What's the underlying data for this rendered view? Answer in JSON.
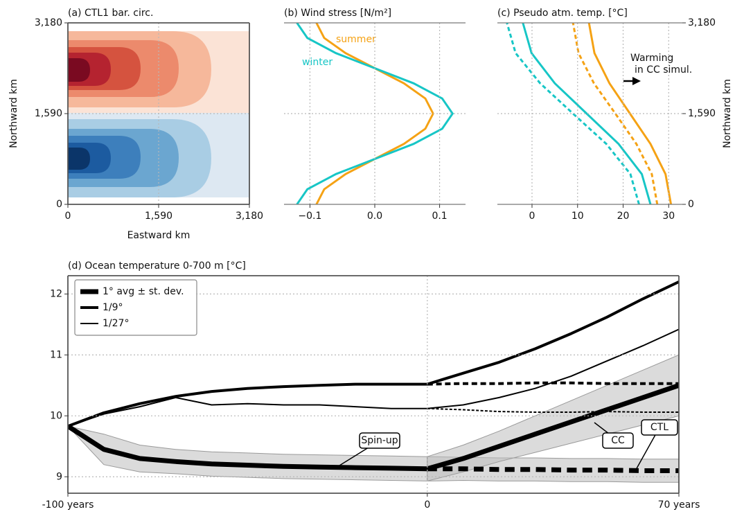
{
  "chart_data": [
    {
      "type": "contour",
      "title": "(a) CTL1 bar. circ.",
      "xlabel": "Eastward km",
      "ylabel": "Northward km",
      "xlim": [
        0,
        3180
      ],
      "ylim": [
        0,
        3180
      ],
      "xticks": [
        0,
        {
          "value": 1590,
          "label": "1,590"
        },
        {
          "value": 3180,
          "label": "3,180"
        }
      ],
      "yticks": [
        0,
        {
          "value": 1590,
          "label": "1,590"
        },
        {
          "value": 3180,
          "label": "3,180"
        }
      ],
      "grid": true,
      "yaxis_side": "left",
      "spines": [
        "top",
        "bottom",
        "left",
        "right"
      ],
      "gyres": [
        {
          "levels": [
            {
              "x_max": 3180,
              "y_min": 1602,
              "y_max": 3034,
              "color": "#fbe3d6"
            },
            {
              "x_max": 2512,
              "y_min": 1699,
              "y_max": 3034,
              "color": "#f6b89b"
            },
            {
              "x_max": 1942,
              "y_min": 1881,
              "y_max": 2877,
              "color": "#ec8a6c"
            },
            {
              "x_max": 1274,
              "y_min": 2003,
              "y_max": 2755,
              "color": "#d5533f"
            },
            {
              "x_max": 752,
              "y_min": 2076,
              "y_max": 2658,
              "color": "#b52330"
            },
            {
              "x_max": 388,
              "y_min": 2148,
              "y_max": 2561,
              "color": "#7a0a21"
            }
          ]
        },
        {
          "levels": [
            {
              "x_max": 3180,
              "y_min": 121,
              "y_max": 1602,
              "color": "#dde8f2"
            },
            {
              "x_max": 2512,
              "y_min": 121,
              "y_max": 1493,
              "color": "#a9cde4"
            },
            {
              "x_max": 1942,
              "y_min": 303,
              "y_max": 1323,
              "color": "#6ba6d0"
            },
            {
              "x_max": 1274,
              "y_min": 449,
              "y_max": 1202,
              "color": "#3d7fbc"
            },
            {
              "x_max": 752,
              "y_min": 546,
              "y_max": 1080,
              "color": "#1c5ba0"
            },
            {
              "x_max": 388,
              "y_min": 607,
              "y_max": 995,
              "color": "#0b3569"
            }
          ]
        }
      ]
    },
    {
      "type": "profile",
      "title": "(b) Wind stress [N/m²]",
      "xlim": [
        -0.14,
        0.14
      ],
      "ylim": [
        0,
        3180
      ],
      "xticks": [
        {
          "value": -0.1,
          "label": "−0.1"
        },
        {
          "value": 0,
          "label": "0.0"
        },
        0.1
      ],
      "ygrid_lines": [
        1590
      ],
      "grid": true,
      "spines": [
        "top",
        "bottom"
      ],
      "y": [
        0,
        265,
        530,
        795,
        1060,
        1325,
        1590,
        1855,
        2120,
        2385,
        2650,
        2915,
        3180
      ],
      "series": [
        {
          "name": "summer",
          "color": "#f5a214",
          "style": "solid",
          "values": [
            -0.09,
            -0.078,
            -0.045,
            0,
            0.045,
            0.078,
            0.09,
            0.078,
            0.045,
            0,
            -0.045,
            -0.078,
            -0.09
          ]
        },
        {
          "name": "winter",
          "color": "#17c6c6",
          "style": "solid",
          "values": [
            -0.12,
            -0.104,
            -0.06,
            0,
            0.06,
            0.104,
            0.12,
            0.104,
            0.06,
            0,
            -0.06,
            -0.104,
            -0.12
          ]
        }
      ]
    },
    {
      "type": "profile",
      "title": "(c) Pseudo atm. temp. [°C]",
      "ylabel": "Northward km",
      "xlim": [
        -7.6,
        33
      ],
      "ylim": [
        0,
        3180
      ],
      "xticks": [
        0,
        10,
        20,
        30
      ],
      "yticks": [
        0,
        {
          "value": 1590,
          "label": "1,590"
        },
        {
          "value": 3180,
          "label": "3,180"
        }
      ],
      "yaxis_side": "right",
      "grid": true,
      "spines": [
        "top",
        "bottom"
      ],
      "annotation": [
        "Warming",
        "in CC simul."
      ],
      "y": [
        0,
        530,
        1060,
        1590,
        2120,
        2650,
        3180
      ],
      "series": [
        {
          "color": "#17c6c6",
          "style": "solid",
          "values": [
            26,
            24.1,
            19,
            12,
            5,
            -0.1,
            -2
          ]
        },
        {
          "color": "#17c6c6",
          "style": "dashed",
          "values": [
            23.5,
            21.6,
            16.3,
            9,
            1.8,
            -3.6,
            -5.5
          ]
        },
        {
          "color": "#f5a214",
          "style": "solid",
          "values": [
            30.5,
            29.3,
            26,
            21.5,
            17,
            13.7,
            12.5
          ]
        },
        {
          "color": "#f5a214",
          "style": "dashed",
          "values": [
            27.5,
            26.3,
            22.9,
            18.3,
            13.6,
            10.2,
            9
          ]
        }
      ]
    },
    {
      "type": "line",
      "title": "(d) Ocean temperature 0-700 m [°C]",
      "xlim": [
        -100,
        70
      ],
      "ylim": [
        8.73,
        12.3
      ],
      "xticks": [
        {
          "value": -100,
          "label": "-100 years"
        },
        0,
        {
          "value": 70,
          "label": "70 years"
        }
      ],
      "yticks": [
        9,
        10,
        11,
        12
      ],
      "yaxis_side": "left",
      "grid": true,
      "spines": [
        "top",
        "bottom",
        "left",
        "right"
      ],
      "legend": "upper left",
      "x": [
        -100,
        -90,
        -80,
        -70,
        -60,
        -50,
        -40,
        -30,
        -20,
        -10,
        0
      ],
      "x_exp": [
        0,
        10,
        20,
        30,
        40,
        50,
        60,
        70
      ],
      "annotations": [
        "Spin-up",
        "CC",
        "CTL"
      ],
      "series": [
        {
          "name": "1° avg ± st. dev.",
          "color": "#000000",
          "width": 7,
          "values": [
            9.83,
            9.45,
            9.3,
            9.25,
            9.21,
            9.19,
            9.17,
            9.16,
            9.15,
            9.14,
            9.13
          ],
          "std": [
            0,
            0.25,
            0.22,
            0.2,
            0.2,
            0.2,
            0.2,
            0.2,
            0.2,
            0.2,
            0.2
          ],
          "ctl": [
            9.13,
            9.13,
            9.12,
            9.12,
            9.11,
            9.11,
            9.1,
            9.1
          ],
          "ctl_std": [
            0.2,
            0.19,
            0.19,
            0.19,
            0.19,
            0.19,
            0.19,
            0.19
          ],
          "cc": [
            9.13,
            9.3,
            9.5,
            9.7,
            9.9,
            10.1,
            10.3,
            10.5
          ],
          "cc_std": [
            0.2,
            0.22,
            0.25,
            0.3,
            0.35,
            0.4,
            0.45,
            0.5
          ]
        },
        {
          "name": "1/9°",
          "color": "#000000",
          "width": 4,
          "values": [
            9.83,
            10.05,
            10.2,
            10.32,
            10.4,
            10.45,
            10.48,
            10.5,
            10.52,
            10.52,
            10.52
          ],
          "ctl": [
            10.52,
            10.53,
            10.53,
            10.54,
            10.54,
            10.53,
            10.53,
            10.53
          ],
          "cc": [
            10.52,
            10.7,
            10.88,
            11.1,
            11.35,
            11.62,
            11.92,
            12.2
          ]
        },
        {
          "name": "1/27°",
          "color": "#000000",
          "width": 2,
          "values": [
            9.83,
            10.03,
            10.15,
            10.3,
            10.18,
            10.2,
            10.18,
            10.18,
            10.15,
            10.12,
            10.12
          ],
          "ctl": [
            10.12,
            10.1,
            10.07,
            10.06,
            10.06,
            10.07,
            10.06,
            10.06
          ],
          "cc": [
            10.12,
            10.18,
            10.3,
            10.45,
            10.65,
            10.9,
            11.15,
            11.42
          ]
        }
      ]
    }
  ]
}
